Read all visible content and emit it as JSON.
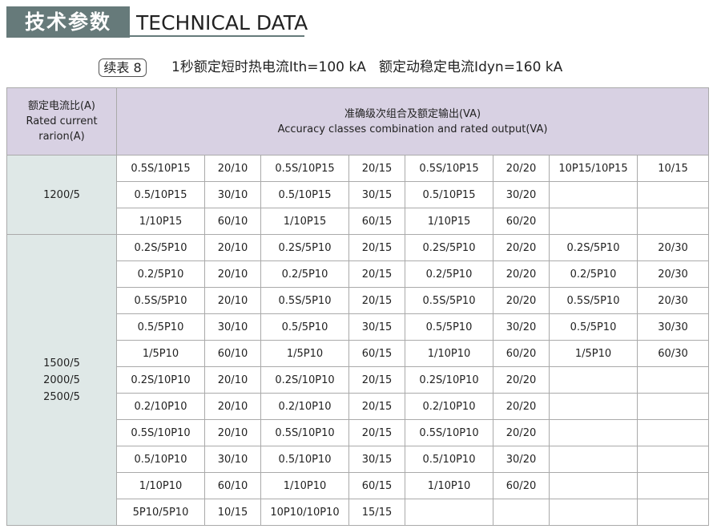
{
  "header": {
    "title_cn": "技术参数",
    "title_en": "TECHNICAL DATA"
  },
  "subtitle": {
    "badge": "续表 8",
    "text": "1秒额定短时热电流Ith=100 kA   额定动稳定电流Idyn=160 kA"
  },
  "table": {
    "head": {
      "ratio": [
        "额定电流比(A)",
        "Rated current",
        "rarion(A)"
      ],
      "output": [
        "准确级次组合及额定输出(VA)",
        "Accuracy classes combination and rated output(VA)"
      ]
    },
    "groups": [
      {
        "ratios": [
          "1200/5"
        ],
        "rows": [
          [
            "0.5S/10P15",
            "20/10",
            "0.5S/10P15",
            "20/15",
            "0.5S/10P15",
            "20/20",
            "10P15/10P15",
            "10/15"
          ],
          [
            "0.5/10P15",
            "30/10",
            "0.5/10P15",
            "30/15",
            "0.5/10P15",
            "30/20"
          ],
          [
            "1/10P15",
            "60/10",
            "1/10P15",
            "60/15",
            "1/10P15",
            "60/20"
          ]
        ]
      },
      {
        "ratios": [
          "1500/5",
          "2000/5",
          "2500/5"
        ],
        "rows": [
          [
            "0.2S/5P10",
            "20/10",
            "0.2S/5P10",
            "20/15",
            "0.2S/5P10",
            "20/20",
            "0.2S/5P10",
            "20/30"
          ],
          [
            "0.2/5P10",
            "20/10",
            "0.2/5P10",
            "20/15",
            "0.2/5P10",
            "20/20",
            "0.2/5P10",
            "20/30"
          ],
          [
            "0.5S/5P10",
            "20/10",
            "0.5S/5P10",
            "20/15",
            "0.5S/5P10",
            "20/20",
            "0.5S/5P10",
            "20/30"
          ],
          [
            "0.5/5P10",
            "30/10",
            "0.5/5P10",
            "30/15",
            "0.5/5P10",
            "30/20",
            "0.5/5P10",
            "30/30"
          ],
          [
            "1/5P10",
            "60/10",
            "1/5P10",
            "60/15",
            "1/10P10",
            "60/20",
            "1/5P10",
            "60/30"
          ],
          [
            "0.2S/10P10",
            "20/10",
            "0.2S/10P10",
            "20/15",
            "0.2S/10P10",
            "20/20"
          ],
          [
            "0.2/10P10",
            "20/10",
            "0.2/10P10",
            "20/15",
            "0.2/10P10",
            "20/20"
          ],
          [
            "0.5S/10P10",
            "20/10",
            "0.5S/10P10",
            "20/15",
            "0.5S/10P10",
            "20/20"
          ],
          [
            "0.5/10P10",
            "30/10",
            "0.5/10P10",
            "30/15",
            "0.5/10P10",
            "30/20"
          ],
          [
            "1/10P10",
            "60/10",
            "1/10P10",
            "60/15",
            "1/10P10",
            "60/20"
          ],
          [
            "5P10/5P10",
            "10/15",
            "10P10/10P10",
            "15/15"
          ]
        ]
      }
    ]
  }
}
